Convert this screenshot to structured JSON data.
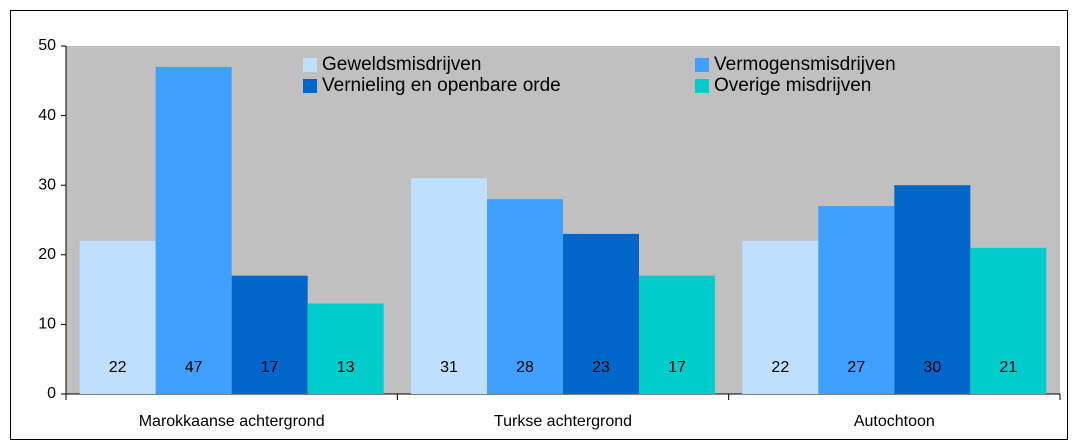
{
  "chart_data": {
    "type": "bar",
    "categories": [
      "Marokkaanse achtergrond",
      "Turkse achtergrond",
      "Autochtoon"
    ],
    "series": [
      {
        "name": "Geweldsmisdrijven",
        "color": "#bfdfff",
        "values": [
          22,
          31,
          22
        ]
      },
      {
        "name": "Vermogensmisdrijven",
        "color": "#3fa0ff",
        "values": [
          47,
          28,
          27
        ]
      },
      {
        "name": "Vernieling en openbare orde",
        "color": "#0066cc",
        "values": [
          17,
          23,
          30
        ]
      },
      {
        "name": "Overige misdrijven",
        "color": "#00cccc",
        "values": [
          13,
          17,
          21
        ]
      }
    ],
    "ylim": [
      0,
      50
    ],
    "yticks": [
      0,
      10,
      20,
      30,
      40,
      50
    ],
    "grid": false,
    "legend": "top"
  }
}
